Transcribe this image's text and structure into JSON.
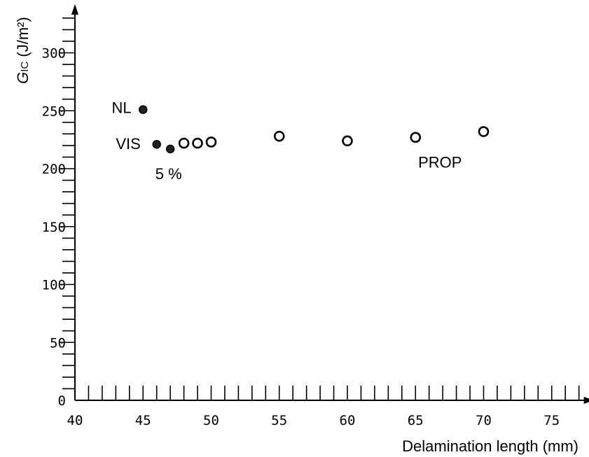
{
  "chart_data": {
    "type": "scatter",
    "xlabel": "Delamination length (mm)",
    "ylabel": {
      "symbol": "G",
      "subscript": "IC",
      "units": " (J/m²)"
    },
    "xlim": [
      40,
      77
    ],
    "ylim": [
      0,
      330
    ],
    "x_major_ticks": [
      40,
      45,
      50,
      55,
      60,
      65,
      70,
      75
    ],
    "x_tick_labels": [
      "40",
      "45",
      "50",
      "55",
      "60",
      "65",
      "70",
      "75"
    ],
    "x_minor_step": 1,
    "y_major_ticks": [
      0,
      50,
      100,
      150,
      200,
      250,
      300
    ],
    "y_tick_labels": [
      "0",
      "50",
      "100",
      "150",
      "200",
      "250",
      "300"
    ],
    "y_minor_step": 10,
    "grid": false,
    "series": [
      {
        "marker": "filled-circle",
        "points": [
          {
            "x": 45,
            "y": 251
          },
          {
            "x": 46,
            "y": 221
          },
          {
            "x": 47,
            "y": 217
          }
        ]
      },
      {
        "marker": "open-circle",
        "points": [
          {
            "x": 48,
            "y": 222
          },
          {
            "x": 49,
            "y": 222
          },
          {
            "x": 50,
            "y": 223
          },
          {
            "x": 55,
            "y": 228
          },
          {
            "x": 60,
            "y": 224
          },
          {
            "x": 65,
            "y": 227
          },
          {
            "x": 70,
            "y": 232
          }
        ]
      }
    ],
    "annotations": [
      {
        "text": "NL",
        "x": 42.7,
        "y": 248
      },
      {
        "text": "VIS",
        "x": 43,
        "y": 217
      },
      {
        "text": "5 %",
        "x": 45.9,
        "y": 191
      },
      {
        "text": "PROP",
        "x": 65.2,
        "y": 201
      }
    ]
  }
}
